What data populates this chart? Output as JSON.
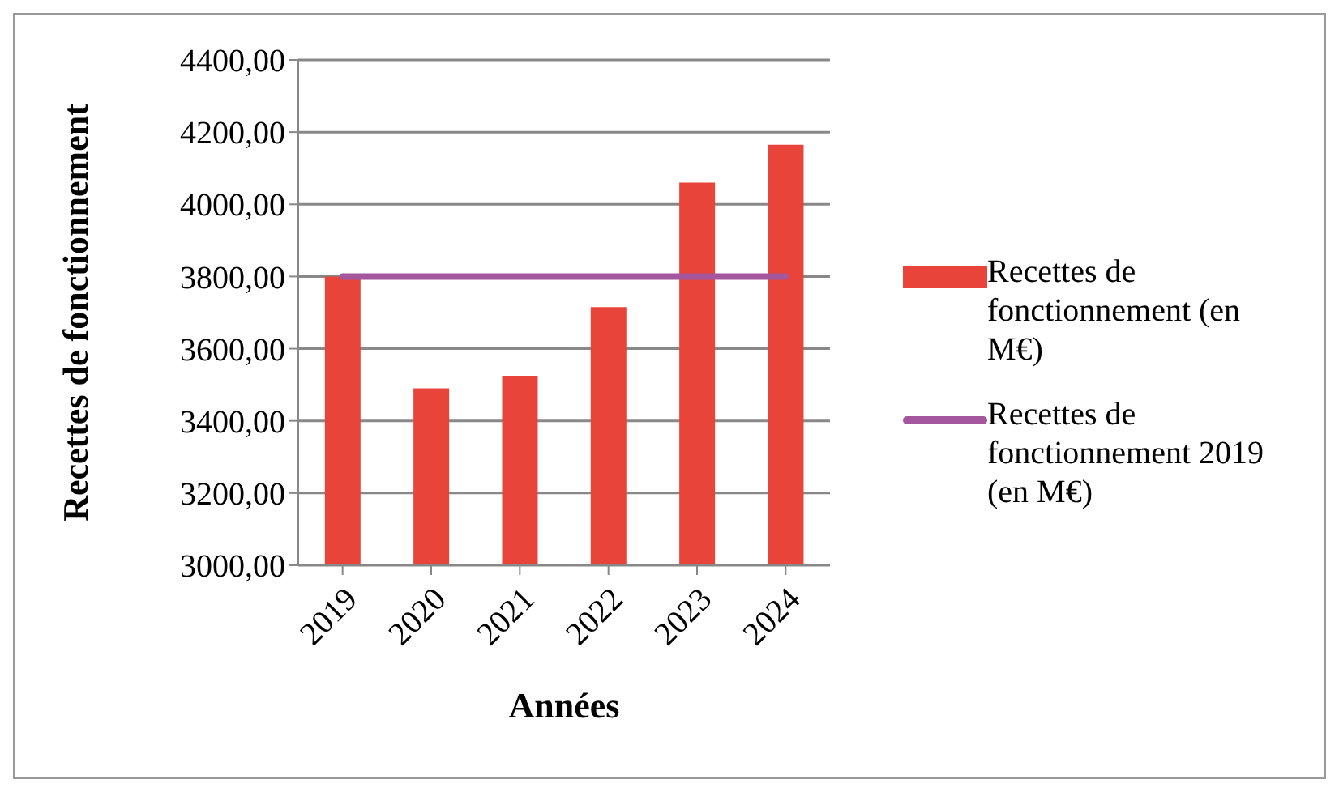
{
  "chart_data": {
    "type": "bar",
    "xlabel": "Années",
    "ylabel": "Recettes de fonctionnement",
    "categories": [
      "2019",
      "2020",
      "2021",
      "2022",
      "2023",
      "2024"
    ],
    "series": [
      {
        "name": "Recettes de fonctionnement (en M€)",
        "color": "#e8443a",
        "values": [
          3800,
          3490,
          3525,
          3715,
          4060,
          4165
        ]
      },
      {
        "name": "Recettes de fonctionnement 2019 (en M€)",
        "type": "line",
        "color": "#a4579c",
        "values": [
          3800,
          3800,
          3800,
          3800,
          3800,
          3800
        ]
      }
    ],
    "ylim": [
      3000,
      4400
    ],
    "yticks": [
      {
        "value": 3000,
        "label": "3000,00"
      },
      {
        "value": 3200,
        "label": "3200,00"
      },
      {
        "value": 3400,
        "label": "3400,00"
      },
      {
        "value": 3600,
        "label": "3600,00"
      },
      {
        "value": 3800,
        "label": "3800,00"
      },
      {
        "value": 4000,
        "label": "4000,00"
      },
      {
        "value": 4200,
        "label": "4200,00"
      },
      {
        "value": 4400,
        "label": "4400,00"
      }
    ],
    "grid": "y",
    "legend": "right",
    "marker": "none"
  }
}
